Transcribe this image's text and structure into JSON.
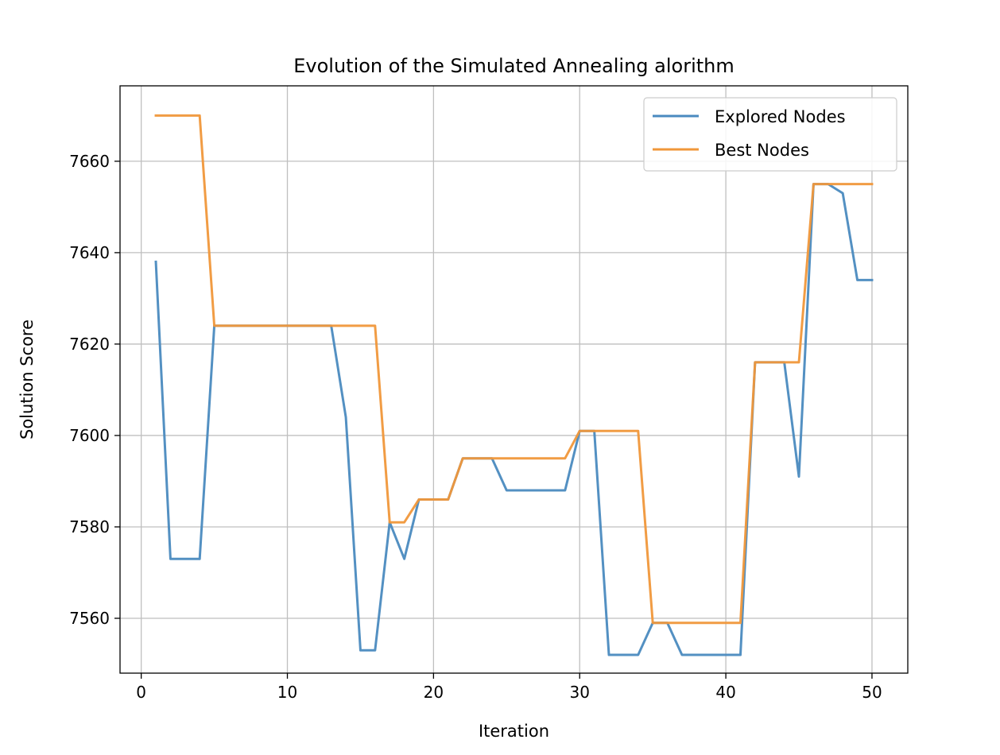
{
  "chart_data": {
    "type": "line",
    "title": "Evolution of the Simulated Annealing alorithm",
    "xlabel": "Iteration",
    "ylabel": "Solution Score",
    "xlim": [
      -1.45,
      52.45
    ],
    "ylim": [
      7548,
      7676.5
    ],
    "xticks": [
      0,
      10,
      20,
      30,
      40,
      50
    ],
    "yticks": [
      7560,
      7580,
      7600,
      7620,
      7640,
      7660
    ],
    "grid": true,
    "legend_position": "upper right",
    "x": [
      1,
      2,
      3,
      4,
      5,
      6,
      7,
      8,
      9,
      10,
      11,
      12,
      13,
      14,
      15,
      16,
      17,
      18,
      19,
      20,
      21,
      22,
      23,
      24,
      25,
      26,
      27,
      28,
      29,
      30,
      31,
      32,
      33,
      34,
      35,
      36,
      37,
      38,
      39,
      40,
      41,
      42,
      43,
      44,
      45,
      46,
      47,
      48,
      49,
      50
    ],
    "series": [
      {
        "name": "Explored Nodes",
        "color": "#4a8abf",
        "values": [
          7638,
          7573,
          7573,
          7573,
          7624,
          7624,
          7624,
          7624,
          7624,
          7624,
          7624,
          7624,
          7624,
          7604,
          7553,
          7553,
          7581,
          7573,
          7586,
          7586,
          7586,
          7595,
          7595,
          7595,
          7588,
          7588,
          7588,
          7588,
          7588,
          7601,
          7601,
          7552,
          7552,
          7552,
          7559,
          7559,
          7552,
          7552,
          7552,
          7552,
          7552,
          7616,
          7616,
          7616,
          7591,
          7655,
          7655,
          7653,
          7634,
          7634
        ]
      },
      {
        "name": "Best Nodes",
        "color": "#f0973a",
        "values": [
          7670,
          7670,
          7670,
          7670,
          7624,
          7624,
          7624,
          7624,
          7624,
          7624,
          7624,
          7624,
          7624,
          7624,
          7624,
          7624,
          7581,
          7581,
          7586,
          7586,
          7586,
          7595,
          7595,
          7595,
          7595,
          7595,
          7595,
          7595,
          7595,
          7601,
          7601,
          7601,
          7601,
          7601,
          7559,
          7559,
          7559,
          7559,
          7559,
          7559,
          7559,
          7616,
          7616,
          7616,
          7616,
          7655,
          7655,
          7655,
          7655,
          7655
        ]
      }
    ]
  }
}
